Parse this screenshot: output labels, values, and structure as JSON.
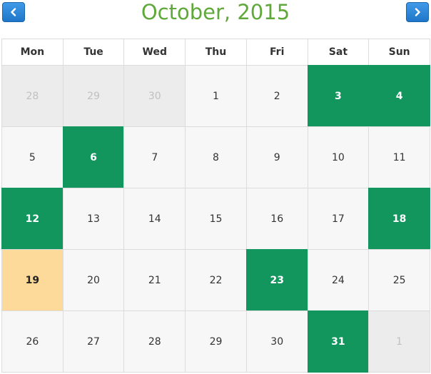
{
  "header": {
    "title": "October, 2015",
    "prev_icon": "chevron-left-icon",
    "next_icon": "chevron-right-icon"
  },
  "weekdays": [
    "Mon",
    "Tue",
    "Wed",
    "Thu",
    "Fri",
    "Sat",
    "Sun"
  ],
  "weeks": [
    [
      {
        "d": "28",
        "k": "other"
      },
      {
        "d": "29",
        "k": "other"
      },
      {
        "d": "30",
        "k": "other"
      },
      {
        "d": "1",
        "k": ""
      },
      {
        "d": "2",
        "k": ""
      },
      {
        "d": "3",
        "k": "event"
      },
      {
        "d": "4",
        "k": "event"
      }
    ],
    [
      {
        "d": "5",
        "k": ""
      },
      {
        "d": "6",
        "k": "event"
      },
      {
        "d": "7",
        "k": ""
      },
      {
        "d": "8",
        "k": ""
      },
      {
        "d": "9",
        "k": ""
      },
      {
        "d": "10",
        "k": ""
      },
      {
        "d": "11",
        "k": ""
      }
    ],
    [
      {
        "d": "12",
        "k": "event"
      },
      {
        "d": "13",
        "k": ""
      },
      {
        "d": "14",
        "k": ""
      },
      {
        "d": "15",
        "k": ""
      },
      {
        "d": "16",
        "k": ""
      },
      {
        "d": "17",
        "k": ""
      },
      {
        "d": "18",
        "k": "event"
      }
    ],
    [
      {
        "d": "19",
        "k": "today"
      },
      {
        "d": "20",
        "k": ""
      },
      {
        "d": "21",
        "k": ""
      },
      {
        "d": "22",
        "k": ""
      },
      {
        "d": "23",
        "k": "event"
      },
      {
        "d": "24",
        "k": ""
      },
      {
        "d": "25",
        "k": ""
      }
    ],
    [
      {
        "d": "26",
        "k": ""
      },
      {
        "d": "27",
        "k": ""
      },
      {
        "d": "28",
        "k": ""
      },
      {
        "d": "29",
        "k": ""
      },
      {
        "d": "30",
        "k": ""
      },
      {
        "d": "31",
        "k": "event"
      },
      {
        "d": "1",
        "k": "other"
      }
    ]
  ],
  "colors": {
    "title": "#5fa83a",
    "event": "#13955e",
    "today": "#fdd99a",
    "nav_button": "#2a86d8"
  }
}
